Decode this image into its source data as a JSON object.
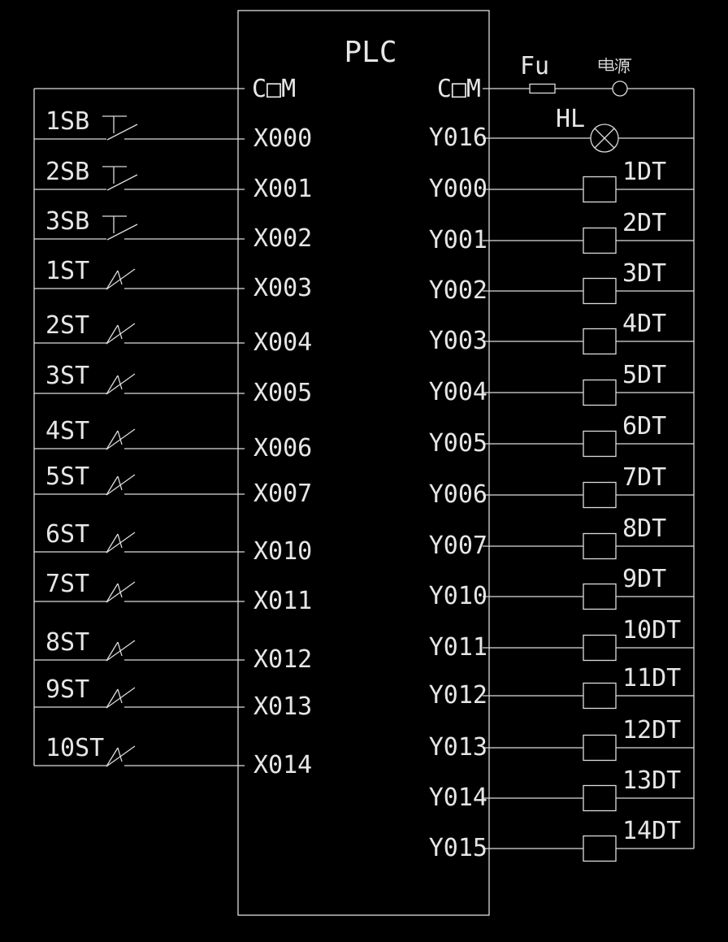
{
  "plc": {
    "name": "PLC",
    "com_left": {
      "text": "COM",
      "display": "C□M"
    },
    "com_right": {
      "text": "COM",
      "display": "C□M"
    }
  },
  "power_line": {
    "fuse": "Fu",
    "source": "电源"
  },
  "lamp_line": {
    "terminal": "Y016",
    "device": "HL"
  },
  "inputs": [
    {
      "device": "1SB",
      "type": "pushbutton",
      "terminal": "X000"
    },
    {
      "device": "2SB",
      "type": "pushbutton",
      "terminal": "X001"
    },
    {
      "device": "3SB",
      "type": "pushbutton",
      "terminal": "X002"
    },
    {
      "device": "1ST",
      "type": "limit-switch",
      "terminal": "X003"
    },
    {
      "device": "2ST",
      "type": "limit-switch",
      "terminal": "X004"
    },
    {
      "device": "3ST",
      "type": "limit-switch",
      "terminal": "X005"
    },
    {
      "device": "4ST",
      "type": "limit-switch",
      "terminal": "X006"
    },
    {
      "device": "5ST",
      "type": "limit-switch",
      "terminal": "X007"
    },
    {
      "device": "6ST",
      "type": "limit-switch",
      "terminal": "X010"
    },
    {
      "device": "7ST",
      "type": "limit-switch",
      "terminal": "X011"
    },
    {
      "device": "8ST",
      "type": "limit-switch",
      "terminal": "X012"
    },
    {
      "device": "9ST",
      "type": "limit-switch",
      "terminal": "X013"
    },
    {
      "device": "10ST",
      "type": "limit-switch",
      "terminal": "X014"
    }
  ],
  "outputs": [
    {
      "terminal": "Y000",
      "device": "1DT"
    },
    {
      "terminal": "Y001",
      "device": "2DT"
    },
    {
      "terminal": "Y002",
      "device": "3DT"
    },
    {
      "terminal": "Y003",
      "device": "4DT"
    },
    {
      "terminal": "Y004",
      "device": "5DT"
    },
    {
      "terminal": "Y005",
      "device": "6DT"
    },
    {
      "terminal": "Y006",
      "device": "7DT"
    },
    {
      "terminal": "Y007",
      "device": "8DT"
    },
    {
      "terminal": "Y010",
      "device": "9DT"
    },
    {
      "terminal": "Y011",
      "device": "10DT"
    },
    {
      "terminal": "Y012",
      "device": "11DT"
    },
    {
      "terminal": "Y013",
      "device": "12DT"
    },
    {
      "terminal": "Y014",
      "device": "13DT"
    },
    {
      "terminal": "Y015",
      "device": "14DT"
    }
  ],
  "colors": {
    "background": "#000000",
    "line": "#dcdcdc",
    "text": "#e6e6e6"
  }
}
